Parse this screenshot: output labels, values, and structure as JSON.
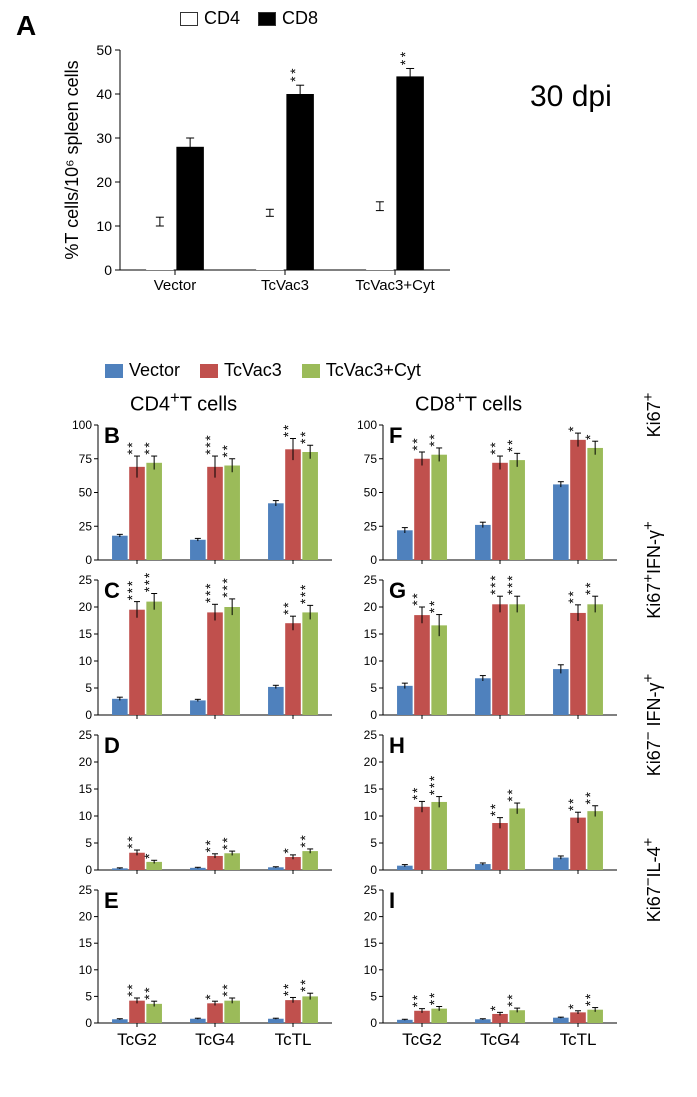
{
  "colors": {
    "white_bar": "#ffffff",
    "black_bar": "#000000",
    "blue_bar": "#4f81bd",
    "red_bar": "#c0504d",
    "green_bar": "#9bbb59",
    "bar_border": "#333333",
    "axis": "#000000"
  },
  "dpi_label": "30 dpi",
  "panelA": {
    "label": "A",
    "y_title": "%T cells/10⁶ spleen cells",
    "y_max": 50,
    "y_step": 10,
    "legend": [
      {
        "label": "CD4",
        "color": "#ffffff"
      },
      {
        "label": "CD8",
        "color": "#000000"
      }
    ],
    "categories": [
      "Vector",
      "TcVac3",
      "TcVac3+Cyt"
    ],
    "series": [
      {
        "name": "CD4",
        "color": "#ffffff",
        "values": [
          11,
          13,
          14.5
        ],
        "err": [
          1,
          0.8,
          1
        ],
        "sig": [
          "",
          "",
          ""
        ]
      },
      {
        "name": "CD8",
        "color": "#000000",
        "values": [
          28,
          40,
          44
        ],
        "err": [
          2,
          2,
          1.8
        ],
        "sig": [
          "",
          "**",
          "**"
        ]
      }
    ]
  },
  "small_legend": [
    {
      "label": "Vector",
      "color": "#4f81bd"
    },
    {
      "label": "TcVac3",
      "color": "#c0504d"
    },
    {
      "label": "TcVac3+Cyt",
      "color": "#9bbb59"
    }
  ],
  "shared_y_title": "%T cells /10⁶ spleen cells",
  "col_titles": {
    "left": "CD4⁺T cells",
    "right": "CD8⁺T cells"
  },
  "row_titles": [
    "Ki67⁺",
    "Ki67⁺IFN-γ⁺",
    "Ki67⁻ IFN-γ⁺",
    "Ki67⁻IL-4⁺"
  ],
  "x_categories": [
    "TcG2",
    "TcG4",
    "TcTL"
  ],
  "panels": {
    "B": {
      "y_max": 100,
      "step": 25,
      "data": [
        [
          18,
          69,
          72
        ],
        [
          15,
          69,
          70
        ],
        [
          42,
          82,
          80
        ]
      ],
      "err": [
        [
          1,
          8,
          5
        ],
        [
          1,
          8,
          5
        ],
        [
          2,
          8,
          5
        ]
      ],
      "sig": [
        [
          "",
          "**",
          "**"
        ],
        [
          "",
          "***",
          "**"
        ],
        [
          "",
          "**",
          "**"
        ]
      ]
    },
    "C": {
      "y_max": 25,
      "step": 5,
      "data": [
        [
          3,
          19.5,
          21
        ],
        [
          2.7,
          19,
          20
        ],
        [
          5.2,
          17,
          19
        ]
      ],
      "err": [
        [
          0.3,
          1.5,
          1.5
        ],
        [
          0.2,
          1.5,
          1.5
        ],
        [
          0.3,
          1.3,
          1.3
        ]
      ],
      "sig": [
        [
          "",
          "***",
          "***"
        ],
        [
          "",
          "***",
          "***"
        ],
        [
          "",
          "**",
          "***"
        ]
      ]
    },
    "D": {
      "y_max": 25,
      "step": 5,
      "data": [
        [
          0.3,
          3.2,
          1.5
        ],
        [
          0.4,
          2.6,
          3.1
        ],
        [
          0.5,
          2.4,
          3.5
        ]
      ],
      "err": [
        [
          0.1,
          0.5,
          0.3
        ],
        [
          0.1,
          0.4,
          0.4
        ],
        [
          0.1,
          0.4,
          0.4
        ]
      ],
      "sig": [
        [
          "",
          "**",
          "*"
        ],
        [
          "",
          "**",
          "**"
        ],
        [
          "",
          "*",
          "**"
        ]
      ]
    },
    "E": {
      "y_max": 25,
      "step": 5,
      "data": [
        [
          0.7,
          4.2,
          3.6
        ],
        [
          0.8,
          3.7,
          4.2
        ],
        [
          0.8,
          4.3,
          5
        ]
      ],
      "err": [
        [
          0.1,
          0.5,
          0.5
        ],
        [
          0.1,
          0.4,
          0.5
        ],
        [
          0.1,
          0.5,
          0.6
        ]
      ],
      "sig": [
        [
          "",
          "**",
          "**"
        ],
        [
          "",
          "*",
          "**"
        ],
        [
          "",
          "**",
          "**"
        ]
      ]
    },
    "F": {
      "y_max": 100,
      "step": 25,
      "data": [
        [
          22,
          75,
          78
        ],
        [
          26,
          72,
          74
        ],
        [
          56,
          89,
          83
        ]
      ],
      "err": [
        [
          2,
          5,
          5
        ],
        [
          2,
          5,
          5
        ],
        [
          2,
          5,
          5
        ]
      ],
      "sig": [
        [
          "",
          "**",
          "**"
        ],
        [
          "",
          "**",
          "**"
        ],
        [
          "",
          "*",
          "*"
        ]
      ]
    },
    "G": {
      "y_max": 25,
      "step": 5,
      "data": [
        [
          5.4,
          18.5,
          16.6
        ],
        [
          6.8,
          20.5,
          20.5
        ],
        [
          8.5,
          18.9,
          20.5
        ]
      ],
      "err": [
        [
          0.5,
          1.5,
          2
        ],
        [
          0.5,
          1.5,
          1.5
        ],
        [
          0.8,
          1.5,
          1.5
        ]
      ],
      "sig": [
        [
          "",
          "**",
          "**"
        ],
        [
          "",
          "***",
          "***"
        ],
        [
          "",
          "**",
          "**"
        ]
      ]
    },
    "H": {
      "y_max": 25,
      "step": 5,
      "data": [
        [
          0.8,
          11.7,
          12.6
        ],
        [
          1.1,
          8.7,
          11.4
        ],
        [
          2.3,
          9.7,
          10.9
        ]
      ],
      "err": [
        [
          0.2,
          1,
          1
        ],
        [
          0.2,
          1,
          1
        ],
        [
          0.3,
          1,
          1
        ]
      ],
      "sig": [
        [
          "",
          "**",
          "***"
        ],
        [
          "",
          "**",
          "**"
        ],
        [
          "",
          "**",
          "**"
        ]
      ]
    },
    "I": {
      "y_max": 25,
      "step": 5,
      "data": [
        [
          0.6,
          2.3,
          2.7
        ],
        [
          0.7,
          1.7,
          2.4
        ],
        [
          1,
          2,
          2.5
        ]
      ],
      "err": [
        [
          0.1,
          0.4,
          0.4
        ],
        [
          0.1,
          0.3,
          0.4
        ],
        [
          0.1,
          0.3,
          0.4
        ]
      ],
      "sig": [
        [
          "",
          "**",
          "**"
        ],
        [
          "",
          "*",
          "**"
        ],
        [
          "",
          "*",
          "**"
        ]
      ]
    }
  },
  "panel_order": [
    "B",
    "C",
    "D",
    "E",
    "F",
    "G",
    "H",
    "I"
  ],
  "fonts": {
    "panel_label": 28,
    "panel_letter": 22,
    "axis": 14,
    "cat": 15,
    "title": 18
  }
}
